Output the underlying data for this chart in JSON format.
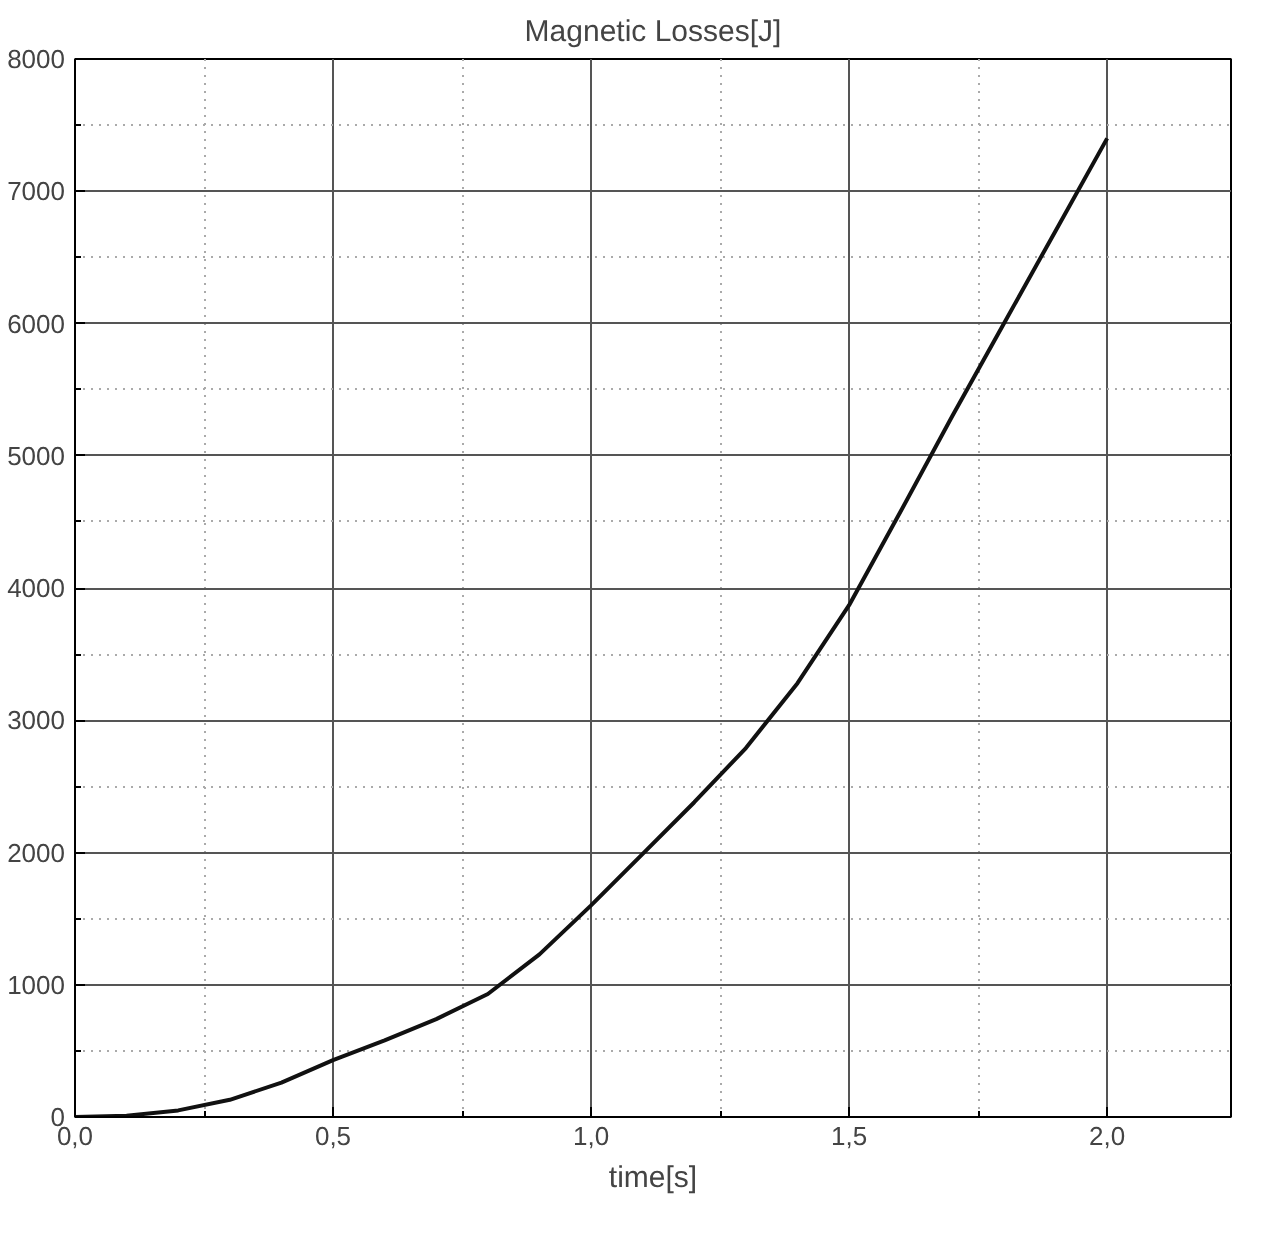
{
  "chart_data": {
    "type": "line",
    "title": "Magnetic Losses[J]",
    "xlabel": "time[s]",
    "x": [
      0,
      0.1,
      0.2,
      0.3,
      0.4,
      0.5,
      0.6,
      0.7,
      0.8,
      0.9,
      1.0,
      1.1,
      1.2,
      1.3,
      1.4,
      1.5,
      1.6,
      1.7,
      1.8,
      1.9,
      2.0
    ],
    "series": [
      {
        "color": "#111111",
        "values": [
          0,
          10,
          50,
          130,
          260,
          430,
          580,
          740,
          930,
          1230,
          1600,
          1990,
          2380,
          2790,
          3280,
          3870,
          4580,
          5300,
          6000,
          6700,
          7400
        ]
      }
    ],
    "xlim": [
      0,
      2.24
    ],
    "ylim": [
      0,
      8000
    ],
    "xticks": [
      {
        "value": 0,
        "label": "0,0"
      },
      {
        "value": 0.5,
        "label": "0,5"
      },
      {
        "value": 1.0,
        "label": "1,0"
      },
      {
        "value": 1.5,
        "label": "1,5"
      },
      {
        "value": 2.0,
        "label": "2,0"
      }
    ],
    "yticks": [
      0,
      1000,
      2000,
      3000,
      4000,
      5000,
      6000,
      7000,
      8000
    ],
    "grid": true,
    "marker": "none",
    "line_style": "solid"
  }
}
